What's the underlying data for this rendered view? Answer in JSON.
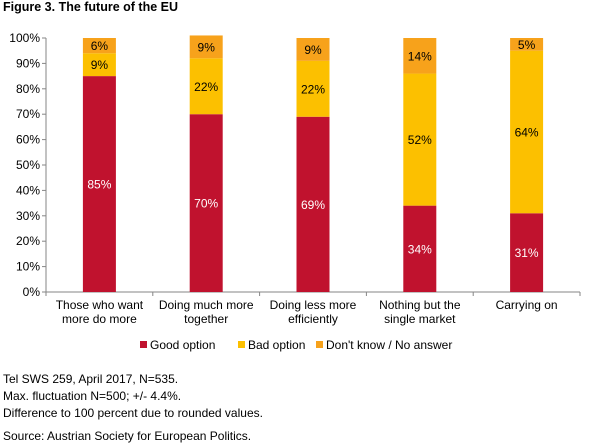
{
  "title": "Figure 3. The future of the EU",
  "chart_data": {
    "type": "bar",
    "stacked": true,
    "categories": [
      [
        "Those who want",
        "more do more"
      ],
      [
        "Doing much more",
        "together"
      ],
      [
        "Doing less more",
        "efficiently"
      ],
      [
        "Nothing but the",
        "single market"
      ],
      [
        "Carrying on"
      ]
    ],
    "series": [
      {
        "name": "Good option",
        "color": "#C0122E",
        "values": [
          85,
          70,
          69,
          34,
          31
        ],
        "label_color": "#ffffff"
      },
      {
        "name": "Bad option",
        "color": "#FCC000",
        "values": [
          9,
          22,
          22,
          52,
          64
        ],
        "label_color": "#000000"
      },
      {
        "name": "Don't know / No answer",
        "color": "#F7A21B",
        "values": [
          6,
          9,
          9,
          14,
          5
        ],
        "label_color": "#000000"
      }
    ],
    "ylim": [
      0,
      100
    ],
    "yticks": [
      "0%",
      "10%",
      "20%",
      "30%",
      "40%",
      "50%",
      "60%",
      "70%",
      "80%",
      "90%",
      "100%"
    ],
    "legend_position": "bottom",
    "grid": false
  },
  "footnotes": [
    "Tel SWS 259, April 2017, N=535.",
    "Max. fluctuation N=500; +/- 4.4%.",
    "Difference to 100 percent due to rounded values."
  ],
  "source": "Source: Austrian Society for European Politics."
}
